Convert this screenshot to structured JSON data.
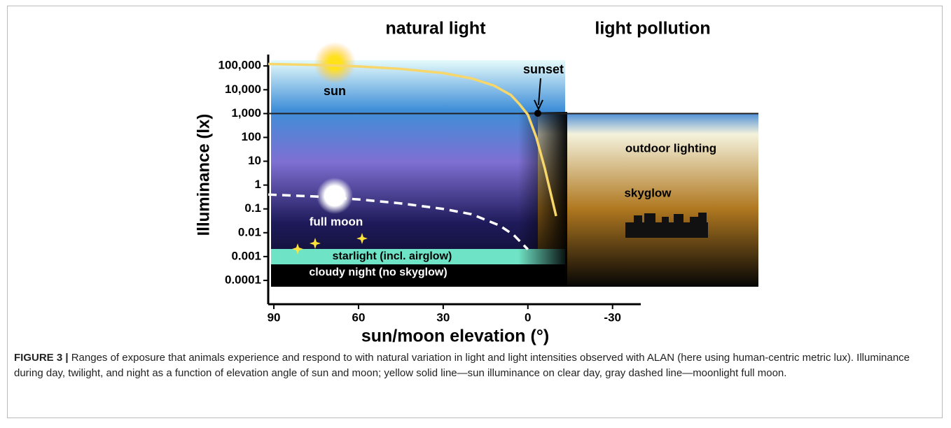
{
  "chart_data": {
    "type": "line",
    "headings": [
      "natural light",
      "light pollution"
    ],
    "annotations": {
      "sunset": "sunset",
      "sun": "sun",
      "full_moon": "full moon",
      "starlight": "starlight (incl. airglow)",
      "cloudy": "cloudy night (no skyglow)",
      "outdoor": "outdoor lighting",
      "skyglow": "skyglow"
    },
    "x_label": "sun/moon elevation (°)",
    "y_label": "Illuminance (lx)",
    "log_y": true,
    "xlim": [
      92,
      -40
    ],
    "xticks": [
      90,
      60,
      30,
      0,
      -30
    ],
    "ylim": [
      1e-05,
      300000
    ],
    "yticks": [
      {
        "value": 100000,
        "label": "100,000"
      },
      {
        "value": 10000,
        "label": "10,000"
      },
      {
        "value": 1000,
        "label": "1,000"
      },
      100,
      10,
      1,
      0.1,
      0.01,
      0.001,
      0.0001
    ],
    "series": [
      {
        "color": "#f7d66a",
        "style": "solid",
        "x": [
          92,
          75,
          60,
          45,
          30,
          20,
          12,
          6,
          3,
          0,
          -3,
          -6,
          -10
        ],
        "values": [
          120000,
          110000,
          95000,
          75000,
          50000,
          30000,
          15000,
          6000,
          2500,
          900,
          100,
          5,
          0.05
        ]
      },
      {
        "color": "#ffffff",
        "style": "dashed",
        "x": [
          92,
          75,
          60,
          45,
          30,
          20,
          10,
          5,
          0
        ],
        "values": [
          0.4,
          0.33,
          0.25,
          0.17,
          0.1,
          0.06,
          0.02,
          0.008,
          0.002
        ]
      }
    ]
  },
  "caption": {
    "label": "FIGURE 3 |",
    "text": "Ranges of exposure that animals experience and respond to with natural variation in light and light intensities observed with ALAN (here using human-centric metric lux). Illuminance during day, twilight, and night as a function of elevation angle of sun and moon; yellow solid line—sun illuminance on clear day, gray dashed line—moonlight full moon."
  }
}
